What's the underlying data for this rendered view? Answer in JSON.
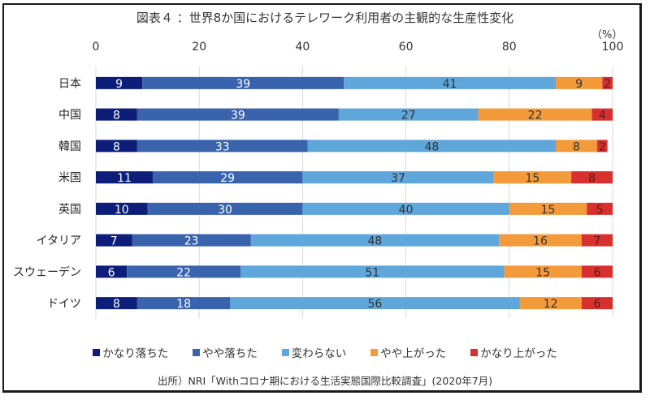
{
  "chart_data": {
    "type": "bar",
    "orientation": "horizontal",
    "stacked": true,
    "title": "図表４ ：世界8か国におけるテレワーク利用者の主観的な生産性変化",
    "unit_label": "（%）",
    "xlabel": "",
    "ylabel": "",
    "xlim": [
      0,
      100
    ],
    "x_ticks": [
      "0",
      "20",
      "40",
      "60",
      "80",
      "100"
    ],
    "x_tick_values": [
      0,
      20,
      40,
      60,
      80,
      100
    ],
    "grid": true,
    "legend_position": "bottom",
    "categories": [
      "日本",
      "中国",
      "韓国",
      "米国",
      "英国",
      "イタリア",
      "スウェーデン",
      "ドイツ"
    ],
    "series": [
      {
        "name": "かなり落ちた",
        "color": "#0c1e7a",
        "label_color": "#ffffff",
        "values": [
          9,
          8,
          8,
          11,
          10,
          7,
          6,
          8
        ]
      },
      {
        "name": "やや落ちた",
        "color": "#3a63ae",
        "label_color": "#ffffff",
        "values": [
          39,
          39,
          33,
          29,
          30,
          23,
          22,
          18
        ]
      },
      {
        "name": "変わらない",
        "color": "#5fa6da",
        "label_color": "#333333",
        "values": [
          41,
          27,
          48,
          37,
          40,
          48,
          51,
          56
        ]
      },
      {
        "name": "やや上がった",
        "color": "#f39a3b",
        "label_color": "#333333",
        "values": [
          9,
          22,
          8,
          15,
          15,
          16,
          15,
          12
        ]
      },
      {
        "name": "かなり上がった",
        "color": "#d8302f",
        "label_color": "#5a1a1a",
        "values": [
          2,
          4,
          2,
          8,
          5,
          7,
          6,
          6
        ]
      }
    ],
    "source": "出所）NRI「Withコロナ期における生活実態国際比較調査」(2020年7月)"
  }
}
